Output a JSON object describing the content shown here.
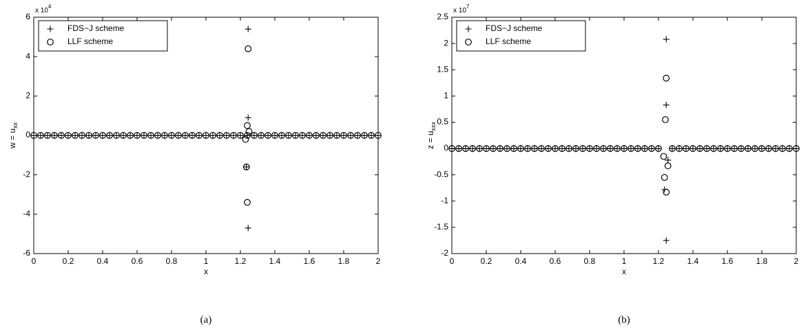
{
  "chart_data": [
    {
      "type": "scatter",
      "caption": "(a)",
      "xlabel": "x",
      "ylabel": "w = u",
      "ylabel_sub": "xx",
      "y_scale": {
        "base": "x 10",
        "exponent": "4"
      },
      "xlim": [
        0,
        2
      ],
      "ylim": [
        -6,
        6
      ],
      "xticks": [
        0,
        0.2,
        0.4,
        0.6,
        0.8,
        1,
        1.2,
        1.4,
        1.6,
        1.8,
        2
      ],
      "yticks": [
        -6,
        -4,
        -2,
        0,
        2,
        4,
        6
      ],
      "legend": "upper left",
      "series": [
        {
          "name": "FDS−J scheme",
          "marker": "+",
          "color": "#000000",
          "x": [
            0,
            0.04,
            0.08,
            0.12,
            0.16,
            0.2,
            0.24,
            0.28,
            0.32,
            0.36,
            0.4,
            0.44,
            0.48,
            0.52,
            0.56,
            0.6,
            0.64,
            0.68,
            0.72,
            0.76,
            0.8,
            0.84,
            0.88,
            0.92,
            0.96,
            1,
            1.04,
            1.08,
            1.12,
            1.16,
            1.2,
            1.24,
            1.28,
            1.32,
            1.36,
            1.4,
            1.44,
            1.48,
            1.52,
            1.56,
            1.6,
            1.64,
            1.68,
            1.72,
            1.76,
            1.8,
            1.84,
            1.88,
            1.92,
            1.96,
            2,
            1.245,
            1.245,
            1.235,
            1.245
          ],
          "values": [
            0,
            0,
            0,
            0,
            0,
            0,
            0,
            0,
            0,
            0,
            0,
            0,
            0,
            0,
            0,
            0,
            0,
            0,
            0,
            0,
            0,
            0,
            0,
            0,
            0,
            0,
            0,
            0,
            0,
            0,
            0,
            0,
            0,
            0,
            0,
            0,
            0,
            0,
            0,
            0,
            0,
            0,
            0,
            0,
            0,
            0,
            0,
            0,
            0,
            0,
            0,
            5.4,
            0.9,
            -1.6,
            -4.7
          ]
        },
        {
          "name": "LLF scheme",
          "marker": "o",
          "color": "#000000",
          "x": [
            0,
            0.04,
            0.08,
            0.12,
            0.16,
            0.2,
            0.24,
            0.28,
            0.32,
            0.36,
            0.4,
            0.44,
            0.48,
            0.52,
            0.56,
            0.6,
            0.64,
            0.68,
            0.72,
            0.76,
            0.8,
            0.84,
            0.88,
            0.92,
            0.96,
            1,
            1.04,
            1.08,
            1.12,
            1.16,
            1.2,
            1.24,
            1.28,
            1.32,
            1.36,
            1.4,
            1.44,
            1.48,
            1.52,
            1.56,
            1.6,
            1.64,
            1.68,
            1.72,
            1.76,
            1.8,
            1.84,
            1.88,
            1.92,
            1.96,
            2,
            1.245,
            1.24,
            1.25,
            1.23,
            1.235,
            1.24
          ],
          "values": [
            0,
            0,
            0,
            0,
            0,
            0,
            0,
            0,
            0,
            0,
            0,
            0,
            0,
            0,
            0,
            0,
            0,
            0,
            0,
            0,
            0,
            0,
            0,
            0,
            0,
            0,
            0,
            0,
            0,
            0,
            0,
            0,
            0,
            0,
            0,
            0,
            0,
            0,
            0,
            0,
            0,
            0,
            0,
            0,
            0,
            0,
            0,
            0,
            0,
            0,
            0,
            4.4,
            0.5,
            0.2,
            -0.2,
            -1.6,
            -3.4
          ]
        }
      ]
    },
    {
      "type": "scatter",
      "caption": "(b)",
      "xlabel": "x",
      "ylabel": "z = u",
      "ylabel_sub": "xxx",
      "y_scale": {
        "base": "x 10",
        "exponent": "7"
      },
      "xlim": [
        0,
        2
      ],
      "ylim": [
        -2,
        2.5
      ],
      "xticks": [
        0,
        0.2,
        0.4,
        0.6,
        0.8,
        1,
        1.2,
        1.4,
        1.6,
        1.8,
        2
      ],
      "yticks": [
        -2,
        -1.5,
        -1,
        -0.5,
        0,
        0.5,
        1,
        1.5,
        2,
        2.5
      ],
      "legend": "upper left",
      "series": [
        {
          "name": "FDS−J scheme",
          "marker": "+",
          "color": "#000000",
          "x": [
            0,
            0.04,
            0.08,
            0.12,
            0.16,
            0.2,
            0.24,
            0.28,
            0.32,
            0.36,
            0.4,
            0.44,
            0.48,
            0.52,
            0.56,
            0.6,
            0.64,
            0.68,
            0.72,
            0.76,
            0.8,
            0.84,
            0.88,
            0.92,
            0.96,
            1,
            1.04,
            1.08,
            1.12,
            1.16,
            1.2,
            1.28,
            1.32,
            1.36,
            1.4,
            1.44,
            1.48,
            1.52,
            1.56,
            1.6,
            1.64,
            1.68,
            1.72,
            1.76,
            1.8,
            1.84,
            1.88,
            1.92,
            1.96,
            2,
            1.245,
            1.245,
            1.255,
            1.235,
            1.245
          ],
          "values": [
            0,
            0,
            0,
            0,
            0,
            0,
            0,
            0,
            0,
            0,
            0,
            0,
            0,
            0,
            0,
            0,
            0,
            0,
            0,
            0,
            0,
            0,
            0,
            0,
            0,
            0,
            0,
            0,
            0,
            0,
            0,
            0,
            0,
            0,
            0,
            0,
            0,
            0,
            0,
            0,
            0,
            0,
            0,
            0,
            0,
            0,
            0,
            0,
            0,
            0,
            2.08,
            0.83,
            -0.22,
            -0.78,
            -1.75
          ]
        },
        {
          "name": "LLF scheme",
          "marker": "o",
          "color": "#000000",
          "x": [
            0,
            0.04,
            0.08,
            0.12,
            0.16,
            0.2,
            0.24,
            0.28,
            0.32,
            0.36,
            0.4,
            0.44,
            0.48,
            0.52,
            0.56,
            0.6,
            0.64,
            0.68,
            0.72,
            0.76,
            0.8,
            0.84,
            0.88,
            0.92,
            0.96,
            1,
            1.04,
            1.08,
            1.12,
            1.16,
            1.2,
            1.28,
            1.32,
            1.36,
            1.4,
            1.44,
            1.48,
            1.52,
            1.56,
            1.6,
            1.64,
            1.68,
            1.72,
            1.76,
            1.8,
            1.84,
            1.88,
            1.92,
            1.96,
            2,
            1.245,
            1.24,
            1.23,
            1.255,
            1.235,
            1.245
          ],
          "values": [
            0,
            0,
            0,
            0,
            0,
            0,
            0,
            0,
            0,
            0,
            0,
            0,
            0,
            0,
            0,
            0,
            0,
            0,
            0,
            0,
            0,
            0,
            0,
            0,
            0,
            0,
            0,
            0,
            0,
            0,
            0,
            0,
            0,
            0,
            0,
            0,
            0,
            0,
            0,
            0,
            0,
            0,
            0,
            0,
            0,
            0,
            0,
            0,
            0,
            0,
            1.34,
            0.55,
            -0.15,
            -0.33,
            -0.55,
            -0.83
          ]
        }
      ]
    }
  ]
}
